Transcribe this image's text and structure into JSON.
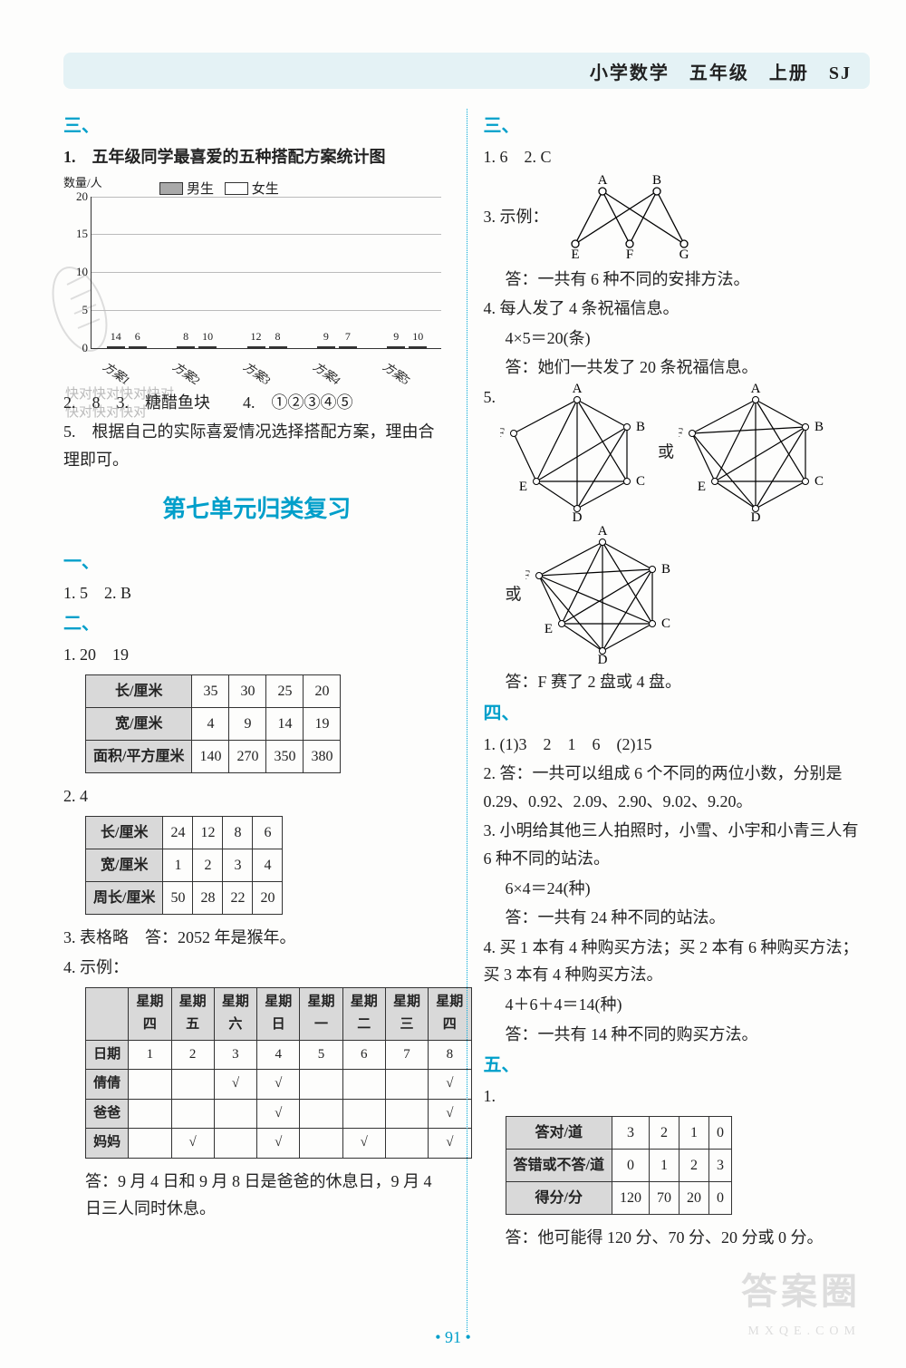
{
  "header": "小学数学　五年级　上册　SJ",
  "page_number": "• 91 •",
  "left": {
    "sect3": "三、",
    "q1_title": "1.　五年级同学最喜爱的五种搭配方案统计图",
    "chart": {
      "ylabel": "数量/人",
      "legend_male": "男生",
      "legend_female": "女生",
      "ymax": 20,
      "ytick_step": 5,
      "categories": [
        "方案1",
        "方案2",
        "方案3",
        "方案4",
        "方案5"
      ],
      "male": [
        14,
        8,
        12,
        9,
        9
      ],
      "female": [
        6,
        10,
        8,
        7,
        10
      ],
      "male_color": "#a9a9a9",
      "female_color": "#ffffff",
      "grid_color": "#bbbbbb",
      "axis_color": "#333333"
    },
    "q2": "2.　8　3.　糖醋鱼块　　4.　①②③④⑤",
    "q5": "5.　根据自己的实际喜爱情况选择搭配方案，理由合理即可。",
    "unit_title": "第七单元归类复习",
    "sect1": "一、",
    "u1": "1. 5　2. B",
    "sect2": "二、",
    "u2_1": "1. 20　19",
    "table1": {
      "rows": [
        [
          "长/厘米",
          "35",
          "30",
          "25",
          "20"
        ],
        [
          "宽/厘米",
          "4",
          "9",
          "14",
          "19"
        ],
        [
          "面积/平方厘米",
          "140",
          "270",
          "350",
          "380"
        ]
      ]
    },
    "u2_2": "2. 4",
    "table2": {
      "rows": [
        [
          "长/厘米",
          "24",
          "12",
          "8",
          "6"
        ],
        [
          "宽/厘米",
          "1",
          "2",
          "3",
          "4"
        ],
        [
          "周长/厘米",
          "50",
          "28",
          "22",
          "20"
        ]
      ]
    },
    "u2_3": "3. 表格略　答：2052 年是猴年。",
    "u2_4": "4. 示例：",
    "table3": {
      "header": [
        "",
        "星期四",
        "星期五",
        "星期六",
        "星期日",
        "星期一",
        "星期二",
        "星期三",
        "星期四"
      ],
      "rows": [
        [
          "日期",
          "1",
          "2",
          "3",
          "4",
          "5",
          "6",
          "7",
          "8"
        ],
        [
          "倩倩",
          "",
          "",
          "√",
          "√",
          "",
          "",
          "",
          "√"
        ],
        [
          "爸爸",
          "",
          "",
          "",
          "√",
          "",
          "",
          "",
          "√"
        ],
        [
          "妈妈",
          "",
          "√",
          "",
          "√",
          "",
          "√",
          "",
          "√"
        ]
      ]
    },
    "u2_4_ans": "答：9 月 4 日和 9 月 8 日是爸爸的休息日，9 月 4 日三人同时休息。"
  },
  "right": {
    "sect3": "三、",
    "r3_1": "1. 6　2. C",
    "r3_3": "3. 示例：",
    "r3_3_ans": "答：一共有 6 种不同的安排方法。",
    "r3_4a": "4. 每人发了 4 条祝福信息。",
    "r3_4b": "4×5＝20(条)",
    "r3_4c": "答：她们一共发了 20 条祝福信息。",
    "r3_5": "5.",
    "r3_5_or": "或",
    "r3_5_ans": "答：F 赛了 2 盘或 4 盘。",
    "graph33": {
      "top": [
        "A",
        "B"
      ],
      "bottom": [
        "E",
        "F",
        "G"
      ],
      "node_color": "#ffffff",
      "stroke": "#000000"
    },
    "pentagon": {
      "labels": [
        "A",
        "B",
        "C",
        "D",
        "E",
        "F"
      ]
    },
    "sect4": "四、",
    "r4_1": "1. (1)3　2　1　6　(2)15",
    "r4_2": "2. 答：一共可以组成 6 个不同的两位小数，分别是 0.29、0.92、2.09、2.90、9.02、9.20。",
    "r4_3a": "3. 小明给其他三人拍照时，小雪、小宇和小青三人有 6 种不同的站法。",
    "r4_3b": "6×4＝24(种)",
    "r4_3c": "答：一共有 24 种不同的站法。",
    "r4_4a": "4. 买 1 本有 4 种购买方法；买 2 本有 6 种购买方法；买 3 本有 4 种购买方法。",
    "r4_4b": "4＋6＋4＝14(种)",
    "r4_4c": "答：一共有 14 种不同的购买方法。",
    "sect5": "五、",
    "r5_1": "1.",
    "table5": {
      "rows": [
        [
          "答对/道",
          "3",
          "2",
          "1",
          "0"
        ],
        [
          "答错或不答/道",
          "0",
          "1",
          "2",
          "3"
        ],
        [
          "得分/分",
          "120",
          "70",
          "20",
          "0"
        ]
      ]
    },
    "r5_ans": "答：他可能得 120 分、70 分、20 分或 0 分。"
  },
  "watermarks": {
    "large": "答案圈",
    "small": "MXQE.COM"
  },
  "kd": "快对快对快对快对\n快对快对快对"
}
